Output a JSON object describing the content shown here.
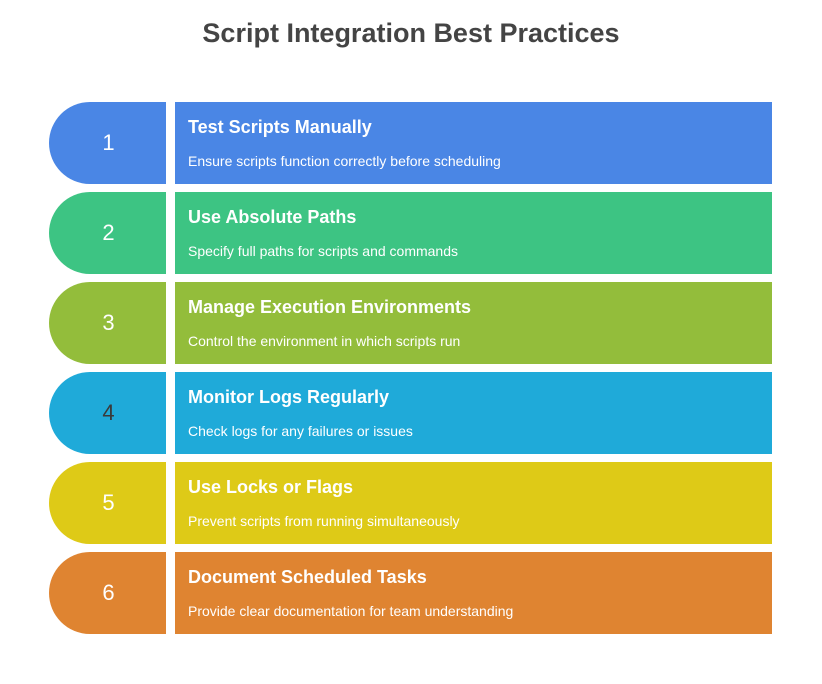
{
  "title": "Script Integration Best Practices",
  "items": [
    {
      "number": "1",
      "heading": "Test Scripts Manually",
      "description": "Ensure scripts function correctly before scheduling",
      "color": "#4A86E5",
      "number_color": "#ffffff"
    },
    {
      "number": "2",
      "heading": "Use Absolute Paths",
      "description": "Specify full paths for scripts and commands",
      "color": "#3DC483",
      "number_color": "#ffffff"
    },
    {
      "number": "3",
      "heading": "Manage Execution Environments",
      "description": "Control the environment in which scripts run",
      "color": "#93BD3B",
      "number_color": "#ffffff"
    },
    {
      "number": "4",
      "heading": "Monitor Logs Regularly",
      "description": "Check logs for any failures or issues",
      "color": "#1FAAD9",
      "number_color": "#3a3a3a"
    },
    {
      "number": "5",
      "heading": "Use Locks or Flags",
      "description": "Prevent scripts from running simultaneously",
      "color": "#DECA17",
      "number_color": "#ffffff"
    },
    {
      "number": "6",
      "heading": "Document Scheduled Tasks",
      "description": "Provide clear documentation for team understanding",
      "color": "#DF8431",
      "number_color": "#ffffff"
    }
  ]
}
